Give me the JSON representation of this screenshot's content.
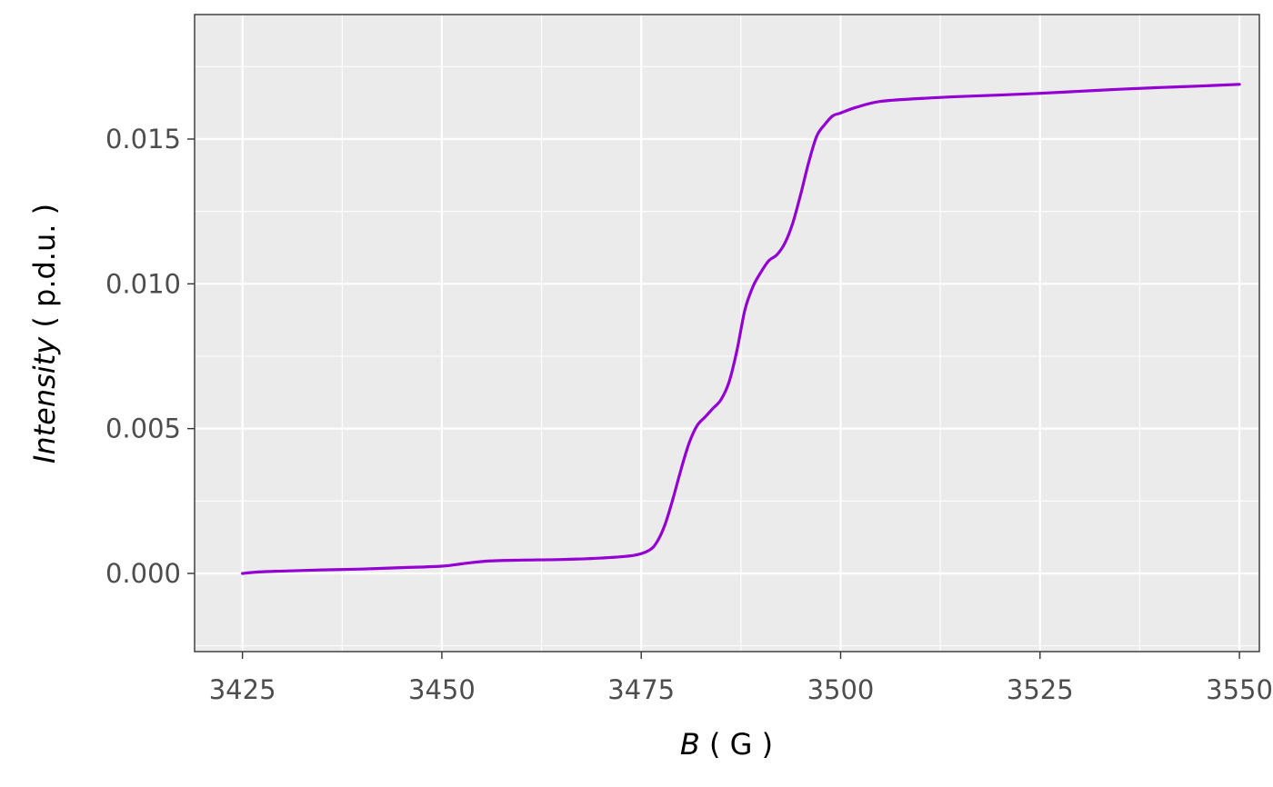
{
  "chart_data": {
    "type": "line",
    "title": "",
    "xlabel": {
      "symbol": "B",
      "unit": " ( G )"
    },
    "ylabel": {
      "symbol": "Intensity",
      "unit": " ( p.d.u. )"
    },
    "xlim": [
      3419,
      3552.5
    ],
    "ylim": [
      -0.0027,
      0.0193
    ],
    "x_ticks": [
      3425,
      3450,
      3475,
      3500,
      3525,
      3550
    ],
    "x_tick_labels": [
      "3425",
      "3450",
      "3475",
      "3500",
      "3525",
      "3550"
    ],
    "y_ticks": [
      0.0,
      0.005,
      0.01,
      0.015
    ],
    "y_tick_labels": [
      "0.000",
      "0.005",
      "0.010",
      "0.015"
    ],
    "grid": true,
    "legend": "none",
    "series": [
      {
        "color": "#9400D3",
        "x": [
          3425,
          3427,
          3430,
          3435,
          3440,
          3445,
          3450,
          3453,
          3456,
          3460,
          3465,
          3470,
          3474,
          3476,
          3477,
          3478,
          3479,
          3480,
          3481,
          3482,
          3483,
          3484,
          3485,
          3486,
          3487,
          3488,
          3489,
          3490,
          3491,
          3492,
          3493,
          3494,
          3495,
          3496,
          3497,
          3498,
          3499,
          3500,
          3502,
          3505,
          3510,
          3515,
          3520,
          3525,
          3530,
          3535,
          3540,
          3545,
          3550
        ],
        "y": [
          0.0,
          5e-05,
          8e-05,
          0.00012,
          0.00015,
          0.0002,
          0.00025,
          0.00035,
          0.00043,
          0.00046,
          0.00048,
          0.00053,
          0.00062,
          0.0008,
          0.0011,
          0.0017,
          0.0026,
          0.0036,
          0.0045,
          0.0051,
          0.0054,
          0.0057,
          0.006,
          0.0066,
          0.0077,
          0.0091,
          0.0099,
          0.0104,
          0.0108,
          0.011,
          0.0114,
          0.0121,
          0.0131,
          0.0142,
          0.0151,
          0.0155,
          0.0158,
          0.0159,
          0.0161,
          0.0163,
          0.0164,
          0.01647,
          0.01652,
          0.01658,
          0.01665,
          0.01672,
          0.01678,
          0.01683,
          0.01689
        ]
      }
    ]
  }
}
